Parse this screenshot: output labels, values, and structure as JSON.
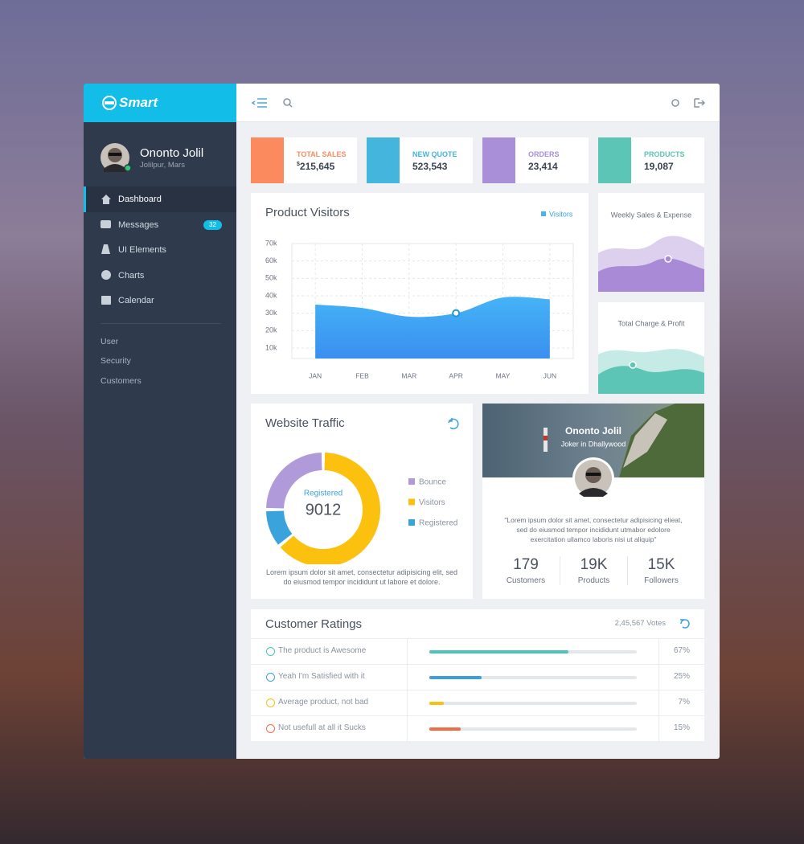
{
  "brand": "Smart",
  "sidebar": {
    "profile": {
      "name": "Ononto Jolil",
      "location": "Jolilpur, Mars"
    },
    "nav": [
      {
        "label": "Dashboard"
      },
      {
        "label": "Messages",
        "badge": "32"
      },
      {
        "label": "UI Elements"
      },
      {
        "label": "Charts"
      },
      {
        "label": "Calendar"
      }
    ],
    "links": [
      "User",
      "Security",
      "Customers"
    ]
  },
  "stats": [
    {
      "label": "TOTAL SALES",
      "currency": "$",
      "value": "215,645"
    },
    {
      "label": "NEW QUOTE",
      "value": "523,543"
    },
    {
      "label": "ORDERS",
      "value": "23,414"
    },
    {
      "label": "PRODUCTS",
      "value": "19,087"
    }
  ],
  "chart_data": [
    {
      "type": "area",
      "title": "Product Visitors",
      "categories": [
        "JAN",
        "FEB",
        "MAR",
        "APR",
        "MAY",
        "JUN"
      ],
      "series": [
        {
          "name": "Visitors",
          "color": "#45b3f7",
          "values": [
            35000,
            33000,
            28000,
            30000,
            39000,
            38000
          ]
        }
      ],
      "ylim": [
        4000,
        70000
      ],
      "yticks": [
        {
          "value": 10000,
          "label": "10k"
        },
        {
          "value": 20000,
          "label": "20k"
        },
        {
          "value": 30000,
          "label": "30k"
        },
        {
          "value": 40000,
          "label": "40k"
        },
        {
          "value": 50000,
          "label": "50k"
        },
        {
          "value": 60000,
          "label": "60k"
        },
        {
          "value": 70000,
          "label": "70k"
        }
      ],
      "grid": true
    },
    {
      "type": "donut",
      "title": "Website Traffic",
      "categories": [
        "Bounce",
        "Visitors",
        "Registered"
      ],
      "values": [
        25,
        64,
        11
      ],
      "colors": [
        "#b09ad9",
        "#fcc10f",
        "#3aa3dc"
      ],
      "center_label": "Registered",
      "center_value": 9012,
      "caption": "Lorem ipsum dolor sit amet, consectetur adipisicing elit, sed do eiusmod tempor incididunt ut labore et dolore."
    }
  ],
  "mini_charts": [
    {
      "title": "Weekly Sales & Expense"
    },
    {
      "title": "Total Charge & Profit"
    }
  ],
  "profile_card": {
    "name": "Ononto Jolil",
    "subtitle": "Joker in Dhallywood",
    "quote": "\"Lorem ipsum dolor sit amet, consectetur adipisicing elieat, sed do eiusmod tempor incididunt utmabor edolore exercitation ullamco laboris nisi ut aliquip\"",
    "stats": [
      {
        "value": "179",
        "label": "Customers"
      },
      {
        "value": "19K",
        "label": "Products"
      },
      {
        "value": "15K",
        "label": "Followers"
      }
    ]
  },
  "ratings": {
    "title": "Customer Ratings",
    "votes": "2,45,567 Votes",
    "rows": [
      {
        "label": "The product is Awesome",
        "value": 67,
        "value_label": "67%",
        "color": "#4fc3b9"
      },
      {
        "label": "Yeah I'm Satisfied with it",
        "value": 25,
        "value_label": "25%",
        "color": "#3a9fdb"
      },
      {
        "label": "Average product, not bad",
        "value": 7,
        "value_label": "7%",
        "color": "#f8c012"
      },
      {
        "label": "Not usefull at all it Sucks",
        "value": 15,
        "value_label": "15%",
        "color": "#ef6d45"
      }
    ]
  }
}
